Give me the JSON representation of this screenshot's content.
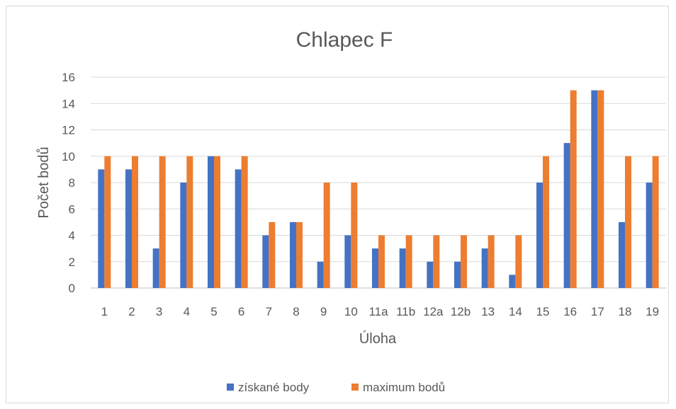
{
  "chart_data": {
    "type": "bar",
    "title": "Chlapec F",
    "xlabel": "Úloha",
    "ylabel": "Počet bodů",
    "categories": [
      "1",
      "2",
      "3",
      "4",
      "5",
      "6",
      "7",
      "8",
      "9",
      "10",
      "11a",
      "11b",
      "12a",
      "12b",
      "13",
      "14",
      "15",
      "16",
      "17",
      "18",
      "19"
    ],
    "series": [
      {
        "name": "získané body",
        "values": [
          9,
          9,
          3,
          8,
          10,
          9,
          4,
          5,
          2,
          4,
          3,
          3,
          2,
          2,
          3,
          1,
          8,
          11,
          15,
          5,
          8
        ],
        "color": "#4472c4"
      },
      {
        "name": "maximum bodů",
        "values": [
          10,
          10,
          10,
          10,
          10,
          10,
          5,
          5,
          8,
          8,
          4,
          4,
          4,
          4,
          4,
          4,
          10,
          15,
          15,
          10,
          10
        ],
        "color": "#ed7d31"
      }
    ],
    "ylim": [
      0,
      16
    ],
    "yticks": [
      0,
      2,
      4,
      6,
      8,
      10,
      12,
      14,
      16
    ],
    "grid": true,
    "legend": "bottom"
  }
}
